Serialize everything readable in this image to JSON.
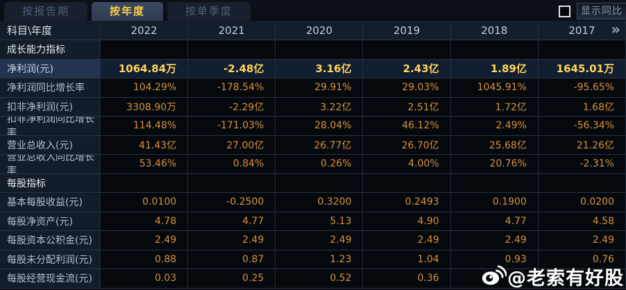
{
  "tabs": [
    {
      "id": "report-period",
      "label": "按报告期",
      "active": false
    },
    {
      "id": "yearly",
      "label": "按年度",
      "active": true
    },
    {
      "id": "single-quarter",
      "label": "按单季度",
      "active": false
    }
  ],
  "controls": {
    "show_yoy_label": "显示同比",
    "checkbox_checked": false
  },
  "table": {
    "corner_label": "科目\\年度",
    "years": [
      "2022",
      "2021",
      "2020",
      "2019",
      "2018",
      "2017"
    ],
    "more_icon": "»",
    "rows": [
      {
        "type": "section",
        "label": "成长能力指标"
      },
      {
        "type": "data",
        "label": "净利润(元)",
        "highlight": true,
        "values": [
          "1064.84万",
          "-2.48亿",
          "3.16亿",
          "2.43亿",
          "1.89亿",
          "1645.01万"
        ]
      },
      {
        "type": "data",
        "label": "净利润同比增长率",
        "values": [
          "104.29%",
          "-178.54%",
          "29.91%",
          "29.03%",
          "1045.91%",
          "-95.65%"
        ]
      },
      {
        "type": "data",
        "label": "扣非净利润(元)",
        "values": [
          "3308.90万",
          "-2.29亿",
          "3.22亿",
          "2.51亿",
          "1.72亿",
          "1.68亿"
        ]
      },
      {
        "type": "data",
        "label": "扣非净利润同比增长率",
        "values": [
          "114.48%",
          "-171.03%",
          "28.04%",
          "46.12%",
          "2.49%",
          "-56.34%"
        ]
      },
      {
        "type": "data",
        "label": "营业总收入(元)",
        "values": [
          "41.43亿",
          "27.00亿",
          "26.77亿",
          "26.70亿",
          "25.68亿",
          "21.26亿"
        ]
      },
      {
        "type": "data",
        "label": "营业总收入同比增长率",
        "values": [
          "53.46%",
          "0.84%",
          "0.26%",
          "4.00%",
          "20.76%",
          "-2.31%"
        ]
      },
      {
        "type": "section",
        "label": "每股指标"
      },
      {
        "type": "data",
        "label": "基本每股收益(元)",
        "values": [
          "0.0100",
          "-0.2500",
          "0.3200",
          "0.2493",
          "0.1900",
          "0.0200"
        ]
      },
      {
        "type": "data",
        "label": "每股净资产(元)",
        "values": [
          "4.78",
          "4.77",
          "5.13",
          "4.90",
          "4.77",
          "4.58"
        ]
      },
      {
        "type": "data",
        "label": "每股资本公积金(元)",
        "values": [
          "2.49",
          "2.49",
          "2.49",
          "2.49",
          "2.49",
          "2.49"
        ]
      },
      {
        "type": "data",
        "label": "每股未分配利润(元)",
        "values": [
          "0.88",
          "0.87",
          "1.23",
          "1.04",
          "0.93",
          "0.76"
        ]
      },
      {
        "type": "data",
        "label": "每股经营现金流(元)",
        "values": [
          "0.03",
          "0.25",
          "0.52",
          "0.36",
          "",
          ""
        ]
      }
    ]
  },
  "watermark": {
    "text": "@老索有好股",
    "icon": "weibo-icon"
  },
  "colors": {
    "background": "#070b11",
    "tab_active_bg": "#36425a",
    "tab_active_text": "#f7cf4a",
    "tab_inactive_text": "#4f5f77",
    "header_bg": "#141d2a",
    "label_cell_bg": "#131c29",
    "value_cell_bg": "#05080d",
    "value_text": "#d8943b",
    "highlight_label_bg": "#243450",
    "highlight_value_bg": "#121f31",
    "highlight_value_text": "#ffd65c",
    "grid_line": "#2a3442",
    "watermark_text": "#ffffff"
  }
}
